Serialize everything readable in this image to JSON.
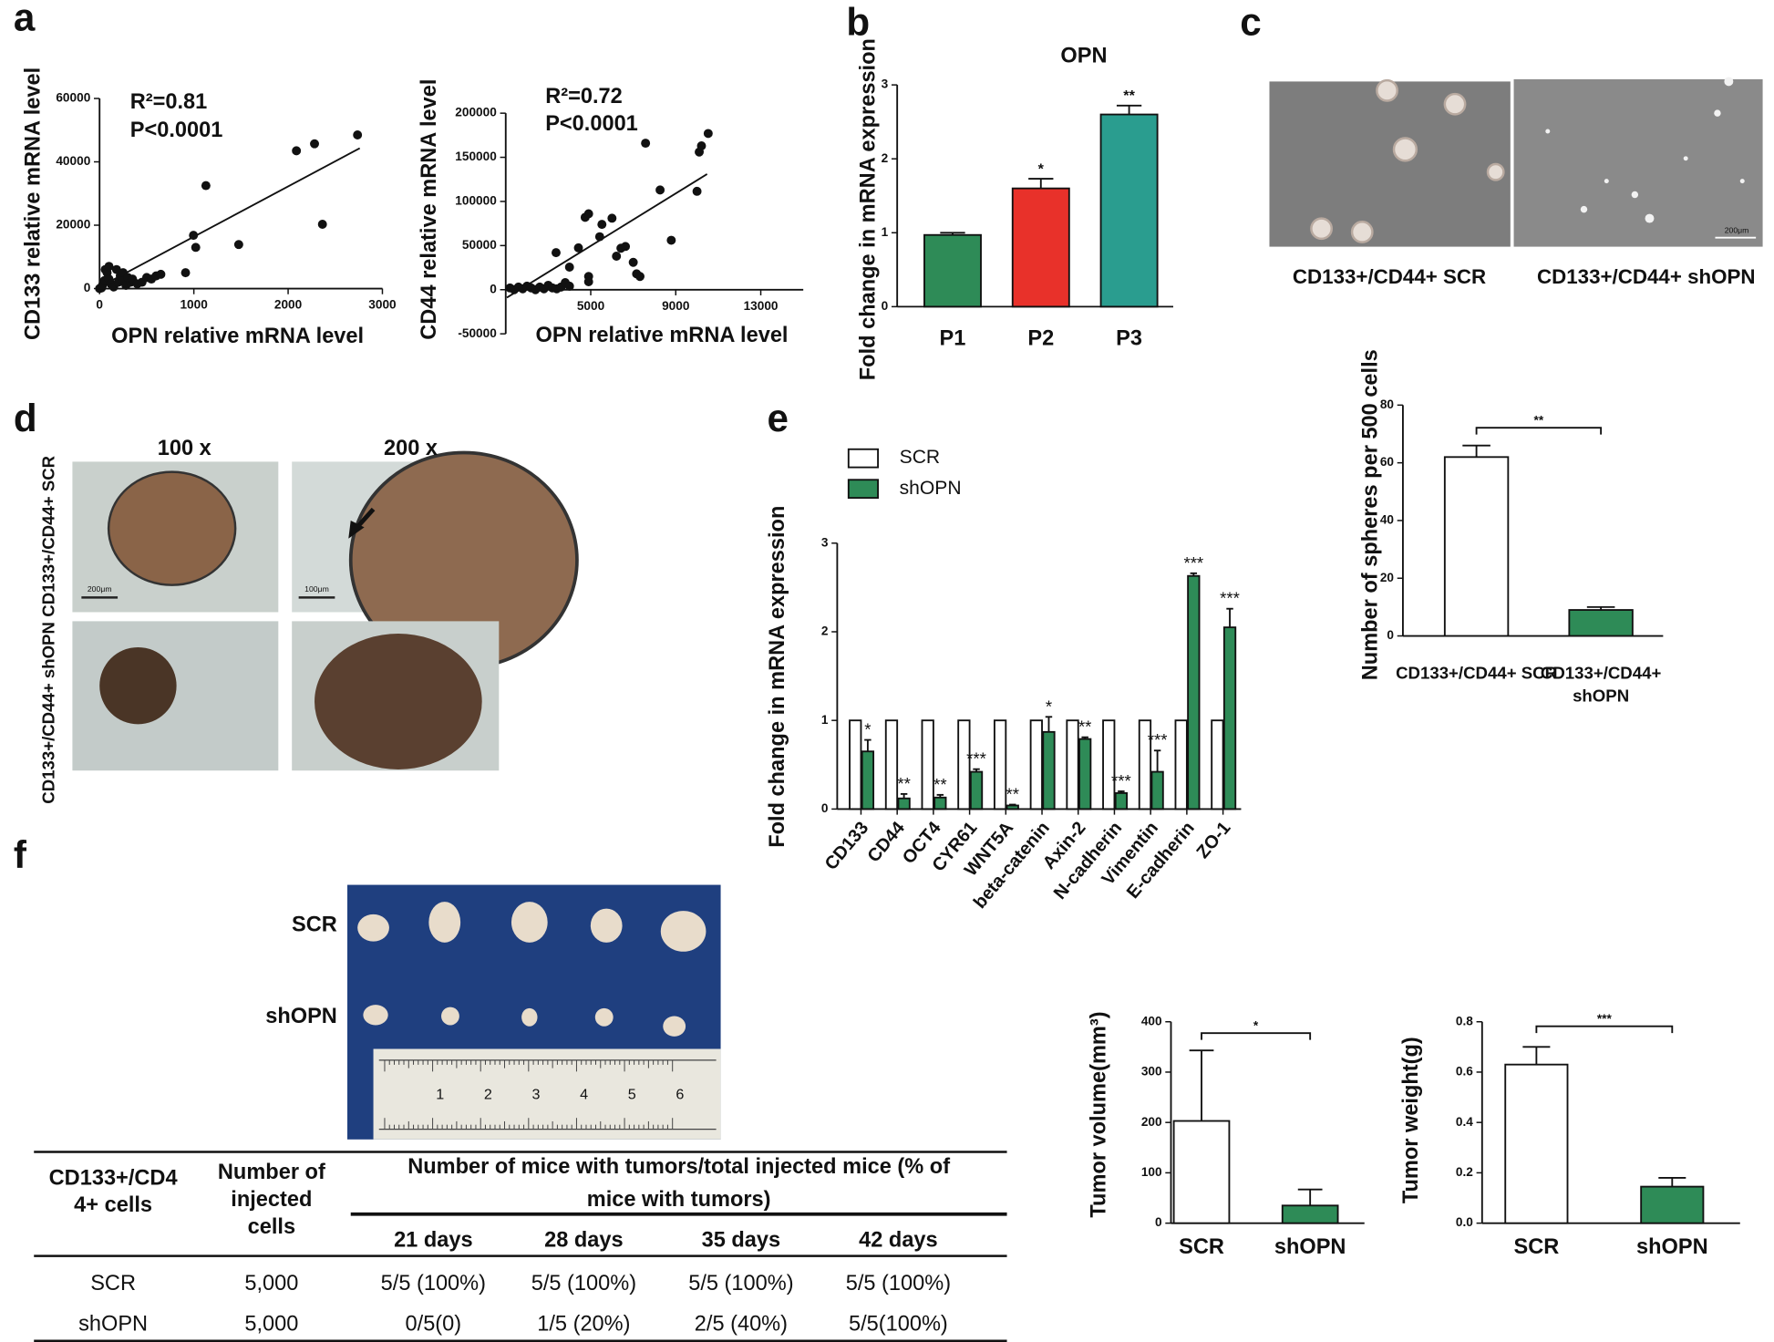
{
  "panel_labels": [
    "a",
    "b",
    "c",
    "d",
    "e",
    "f"
  ],
  "photos": {
    "c_labels": [
      "CD133+/CD44+ SCR",
      "CD133+/CD44+ shOPN"
    ],
    "c_scale": "200μm",
    "d_columns": [
      "100 x",
      "200 x"
    ],
    "d_rows": [
      "CD133+/CD44+ SCR",
      "CD133+/CD44+ shOPN"
    ],
    "d_scales": [
      "200μm",
      "100μm"
    ],
    "f_rows": [
      "SCR",
      "shOPN"
    ],
    "f_ruler": [
      1,
      2,
      3,
      4,
      5,
      6
    ]
  },
  "table": {
    "header": [
      "CD133+/CD44+ cells",
      "Number of injected cells",
      "Number of mice with tumors/total injected mice (% of mice with tumors)"
    ],
    "subheader": [
      "21 days",
      "28 days",
      "35 days",
      "42 days"
    ],
    "rows": [
      [
        "SCR",
        "5,000",
        "5/5 (100%)",
        "5/5 (100%)",
        "5/5 (100%)",
        "5/5 (100%)"
      ],
      [
        "shOPN",
        "5,000",
        "0/5(0)",
        "1/5 (20%)",
        "2/5 (40%)",
        "5/5(100%)"
      ]
    ]
  },
  "chart_data": [
    {
      "type": "scatter",
      "x_label": "OPN relative mRNA level",
      "y_label": "CD133 relative mRNA level",
      "annotations": [
        "R²=0.81",
        "P<0.0001"
      ],
      "color": "#111111",
      "x": [
        0,
        20,
        30,
        50,
        60,
        80,
        100,
        100,
        120,
        150,
        180,
        200,
        220,
        250,
        250,
        280,
        300,
        330,
        350,
        400,
        450,
        500,
        550,
        600,
        650,
        912,
        996,
        1020,
        1128,
        1476,
        2088,
        2280,
        2364,
        2736
      ],
      "values": [
        0,
        200,
        1000,
        2500,
        6000,
        5000,
        3000,
        7000,
        1500,
        500,
        6000,
        2000,
        4000,
        2500,
        5000,
        1000,
        3500,
        2000,
        3000,
        1500,
        2000,
        3500,
        3000,
        4000,
        4500,
        5000,
        16800,
        13000,
        32500,
        13900,
        43500,
        45700,
        20300,
        48500
      ],
      "fit": {
        "x": [
          0,
          2760
        ],
        "values": [
          500,
          44300
        ]
      },
      "xlim": [
        0,
        3000
      ],
      "xticks": [
        0,
        1000,
        2000,
        3000
      ],
      "ylim": [
        0,
        60000
      ],
      "yticks": [
        0,
        20000,
        40000,
        60000
      ]
    },
    {
      "type": "scatter",
      "x_label": "OPN relative mRNA level",
      "y_label": "CD44 relative mRNA level",
      "annotations": [
        "R²=0.72",
        "P<0.0001"
      ],
      "color": "#111111",
      "x": [
        1200,
        1400,
        1600,
        1800,
        2000,
        2200,
        2400,
        2600,
        2800,
        3000,
        3200,
        3400,
        3600,
        3800,
        4000,
        3368,
        4000,
        4421,
        4737,
        4900,
        4900,
        4900,
        5421,
        5526,
        6000,
        6210,
        6421,
        6632,
        7000,
        7158,
        7316,
        7579,
        8263,
        8789,
        10000,
        10105,
        10210,
        10526
      ],
      "values": [
        2000,
        0,
        3000,
        1000,
        4000,
        2000,
        0,
        3000,
        1000,
        5000,
        2000,
        1000,
        3000,
        8000,
        4000,
        42000,
        25600,
        47400,
        82000,
        86000,
        15000,
        9000,
        60000,
        74000,
        81000,
        38000,
        47000,
        49000,
        31000,
        18000,
        15000,
        166000,
        113000,
        56000,
        111500,
        156000,
        163000,
        177000
      ],
      "fit": {
        "x": [
          1053,
          10474
        ],
        "values": [
          -9000,
          131000
        ]
      },
      "xlim": [
        1000,
        15000
      ],
      "xticks": [
        5000,
        9000,
        13000
      ],
      "ylim": [
        -50000,
        200000
      ],
      "yticks": [
        -50000,
        0,
        50000,
        100000,
        150000,
        200000
      ]
    },
    {
      "type": "bar",
      "title": "OPN",
      "y_label": "Fold change in mRNA expression",
      "categories": [
        "P1",
        "P2",
        "P3"
      ],
      "values": [
        0.97,
        1.6,
        2.6
      ],
      "errors": [
        0.03,
        0.13,
        0.12
      ],
      "significance": [
        null,
        "*",
        "**"
      ],
      "colors": [
        "#2e8b57",
        "#e8312a",
        "#2a9d8f"
      ],
      "ylim": [
        0,
        3
      ],
      "yticks": [
        0,
        1,
        2,
        3
      ]
    },
    {
      "type": "bar",
      "y_label": "Number of spheres per 500 cells",
      "categories": [
        "CD133+/CD44+ SCR",
        "CD133+/CD44+ shOPN"
      ],
      "values": [
        62,
        9
      ],
      "errors": [
        4,
        1
      ],
      "colors": [
        "#ffffff",
        "#2e8b57"
      ],
      "bracket_label": "**",
      "ylim": [
        0,
        80
      ],
      "yticks": [
        0,
        20,
        40,
        60,
        80
      ]
    },
    {
      "type": "grouped_bar",
      "y_label": "Fold change in mRNA expression",
      "categories": [
        "CD133",
        "CD44",
        "OCT4",
        "CYR61",
        "WNT5A",
        "beta-catenin",
        "Axin-2",
        "N-cadherin",
        "Vimentin",
        "E-cadherin",
        "ZO-1"
      ],
      "series": [
        {
          "name": "SCR",
          "color": "#ffffff",
          "values": [
            1,
            1,
            1,
            1,
            1,
            1,
            1,
            1,
            1,
            1,
            1
          ]
        },
        {
          "name": "shOPN",
          "color": "#2e8b57",
          "values": [
            0.65,
            0.12,
            0.13,
            0.42,
            0.04,
            0.87,
            0.79,
            0.18,
            0.42,
            2.63,
            2.05
          ],
          "errors": [
            0.13,
            0.05,
            0.03,
            0.03,
            0.01,
            0.17,
            0.02,
            0.02,
            0.24,
            0.03,
            0.21
          ],
          "significance": [
            "*",
            "**",
            "**",
            "***",
            "**",
            "*",
            "**",
            "***",
            "***",
            "***",
            "***"
          ]
        }
      ],
      "legend": "top-left",
      "ylim": [
        0,
        3
      ],
      "yticks": [
        0,
        1,
        2,
        3
      ]
    },
    {
      "type": "bar",
      "y_label": "Tumor volume(mm³)",
      "categories": [
        "SCR",
        "shOPN"
      ],
      "values": [
        203,
        35
      ],
      "errors": [
        140,
        32
      ],
      "colors": [
        "#ffffff",
        "#2e8b57"
      ],
      "bracket_label": "*",
      "ylim": [
        0,
        400
      ],
      "yticks": [
        0,
        100,
        200,
        300,
        400
      ]
    },
    {
      "type": "bar",
      "y_label": "Tumor weight(g)",
      "categories": [
        "SCR",
        "shOPN"
      ],
      "values": [
        0.63,
        0.145
      ],
      "errors": [
        0.07,
        0.035
      ],
      "colors": [
        "#ffffff",
        "#2e8b57"
      ],
      "bracket_label": "***",
      "ylim": [
        0,
        0.8
      ],
      "yticks": [
        {
          "value": 0,
          "label": "0.0"
        },
        0.2,
        0.4,
        0.6,
        0.8
      ]
    }
  ]
}
